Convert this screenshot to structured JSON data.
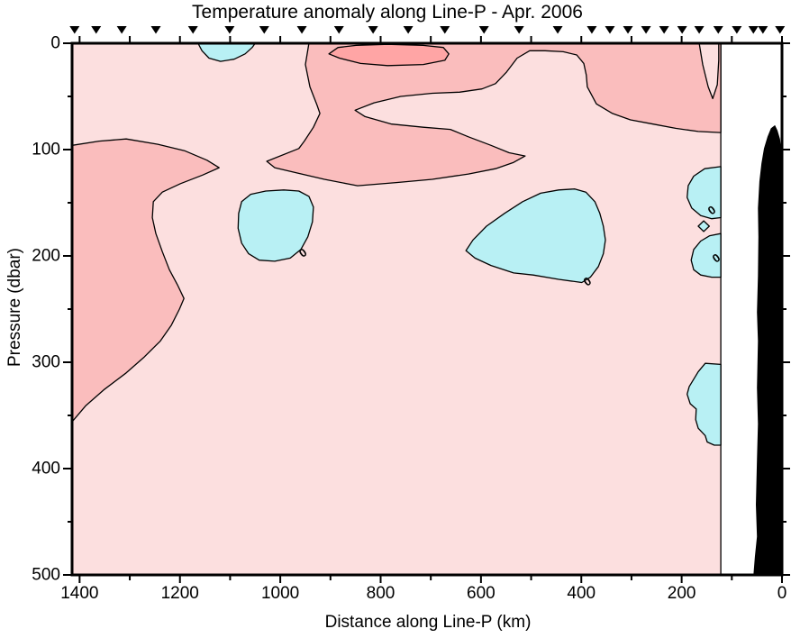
{
  "title": "Temperature anomaly along Line-P - Apr. 2006",
  "axes": {
    "x": {
      "label": "Distance along Line-P (km)",
      "min": 0,
      "max": 1415,
      "reversed": true,
      "major_ticks": [
        1400,
        1200,
        1000,
        800,
        600,
        400,
        200,
        0
      ],
      "minor_ticks": [
        1300,
        1100,
        900,
        700,
        500,
        300,
        100
      ],
      "tick_labels": [
        "1400",
        "1200",
        "1000",
        "800",
        "600",
        "400",
        "200",
        "0"
      ]
    },
    "y": {
      "label": "Pressure (dbar)",
      "min": 0,
      "max": 500,
      "major_ticks": [
        0,
        100,
        200,
        300,
        400,
        500
      ],
      "minor_ticks": [
        50,
        150,
        250,
        350,
        450
      ],
      "tick_labels": [
        "0",
        "100",
        "200",
        "300",
        "400",
        "500"
      ]
    }
  },
  "colors": {
    "light": "#FCDFDF",
    "medium": "#FABDBD",
    "strong": "#FFA5A5",
    "cool": "#B8F0F4",
    "land": "#000000",
    "line": "#000000"
  },
  "chart_data": {
    "type": "filled_contour_section",
    "title": "Temperature anomaly along Line-P - Apr. 2006",
    "xlabel": "Distance along Line-P (km)",
    "ylabel": "Pressure (dbar)",
    "x_unit": "km",
    "y_unit": "dbar",
    "x_range": [
      1415,
      0
    ],
    "y_range": [
      0,
      500
    ],
    "data_extent_km": [
      1415,
      122
    ],
    "contour_levels": [
      0,
      0.5,
      1
    ],
    "station_marker_positions_km": [
      1410,
      1367,
      1316,
      1248,
      1174,
      1101,
      1032,
      957,
      883,
      815,
      745,
      672,
      594,
      524,
      447,
      379,
      343,
      307,
      271,
      235,
      199,
      165,
      127,
      90,
      57,
      38,
      4
    ],
    "regions": [
      {
        "name": "region-left-warm",
        "level": "+0.5 to +1",
        "color_key": "medium",
        "points": [
          [
            1415,
            96
          ],
          [
            1361,
            92
          ],
          [
            1307,
            90
          ],
          [
            1244,
            95
          ],
          [
            1191,
            101
          ],
          [
            1146,
            110
          ],
          [
            1122,
            117
          ],
          [
            1155,
            124
          ],
          [
            1199,
            132
          ],
          [
            1235,
            140
          ],
          [
            1253,
            149
          ],
          [
            1255,
            164
          ],
          [
            1248,
            179
          ],
          [
            1235,
            196
          ],
          [
            1221,
            213
          ],
          [
            1205,
            227
          ],
          [
            1192,
            240
          ],
          [
            1201,
            250
          ],
          [
            1217,
            265
          ],
          [
            1239,
            280
          ],
          [
            1271,
            295
          ],
          [
            1307,
            310
          ],
          [
            1352,
            326
          ],
          [
            1388,
            341
          ],
          [
            1415,
            356
          ]
        ]
      },
      {
        "name": "region-central-warm",
        "level": "+0.5 to +1",
        "color_key": "medium",
        "points": [
          [
            943,
            0
          ],
          [
            950,
            20
          ],
          [
            941,
            41
          ],
          [
            927,
            58
          ],
          [
            921,
            66
          ],
          [
            934,
            79
          ],
          [
            952,
            92
          ],
          [
            963,
            99
          ],
          [
            1027,
            111
          ],
          [
            1011,
            117
          ],
          [
            966,
            122
          ],
          [
            912,
            128
          ],
          [
            846,
            134
          ],
          [
            769,
            131
          ],
          [
            697,
            128
          ],
          [
            625,
            123
          ],
          [
            571,
            118
          ],
          [
            535,
            112
          ],
          [
            512,
            106
          ],
          [
            544,
            103
          ],
          [
            580,
            96
          ],
          [
            625,
            88
          ],
          [
            661,
            81
          ],
          [
            715,
            79
          ],
          [
            778,
            76
          ],
          [
            831,
            69
          ],
          [
            851,
            63
          ],
          [
            813,
            56
          ],
          [
            760,
            50
          ],
          [
            697,
            47
          ],
          [
            643,
            46
          ],
          [
            598,
            43
          ],
          [
            571,
            38
          ],
          [
            549,
            27
          ],
          [
            528,
            14
          ],
          [
            503,
            7
          ],
          [
            472,
            7
          ],
          [
            436,
            8
          ],
          [
            409,
            11
          ],
          [
            395,
            19
          ],
          [
            390,
            30
          ],
          [
            388,
            41
          ],
          [
            370,
            57
          ],
          [
            338,
            66
          ],
          [
            302,
            72
          ],
          [
            257,
            76
          ],
          [
            212,
            80
          ],
          [
            167,
            83
          ],
          [
            122,
            84
          ],
          [
            122,
            0
          ]
        ]
      },
      {
        "name": "region-top-right-notch",
        "level": "0 to +0.5",
        "color_key": "light",
        "points": [
          [
            165,
            0
          ],
          [
            158,
            20
          ],
          [
            147,
            41
          ],
          [
            138,
            52
          ],
          [
            129,
            39
          ],
          [
            126,
            16
          ],
          [
            126,
            0
          ]
        ]
      },
      {
        "name": "region-warm-core",
        "level": "above +1",
        "color_key": "strong",
        "points": [
          [
            903,
            10
          ],
          [
            885,
            4
          ],
          [
            849,
            2
          ],
          [
            786,
            1
          ],
          [
            715,
            2
          ],
          [
            675,
            4
          ],
          [
            664,
            10
          ],
          [
            672,
            16
          ],
          [
            715,
            20
          ],
          [
            786,
            21
          ],
          [
            840,
            19
          ],
          [
            882,
            14
          ]
        ]
      },
      {
        "name": "region-cool-top",
        "level": "below 0",
        "color_key": "cool",
        "points": [
          [
            1164,
            0
          ],
          [
            1156,
            7
          ],
          [
            1142,
            14
          ],
          [
            1119,
            17
          ],
          [
            1092,
            15
          ],
          [
            1070,
            10
          ],
          [
            1056,
            4
          ],
          [
            1050,
            0
          ]
        ]
      },
      {
        "name": "region-cool-west",
        "level": "below 0",
        "color_key": "cool",
        "points": [
          [
            1083,
            160
          ],
          [
            1077,
            149
          ],
          [
            1059,
            142
          ],
          [
            1029,
            139
          ],
          [
            993,
            138
          ],
          [
            963,
            139
          ],
          [
            943,
            144
          ],
          [
            934,
            154
          ],
          [
            936,
            168
          ],
          [
            945,
            182
          ],
          [
            959,
            194
          ],
          [
            980,
            202
          ],
          [
            1011,
            205
          ],
          [
            1042,
            204
          ],
          [
            1063,
            198
          ],
          [
            1077,
            188
          ],
          [
            1084,
            174
          ]
        ]
      },
      {
        "name": "region-cool-central",
        "level": "below 0",
        "color_key": "cool",
        "points": [
          [
            630,
            195
          ],
          [
            616,
            185
          ],
          [
            589,
            172
          ],
          [
            553,
            160
          ],
          [
            517,
            149
          ],
          [
            481,
            141
          ],
          [
            445,
            138
          ],
          [
            413,
            137
          ],
          [
            391,
            140
          ],
          [
            373,
            149
          ],
          [
            363,
            160
          ],
          [
            356,
            172
          ],
          [
            352,
            185
          ],
          [
            356,
            198
          ],
          [
            366,
            210
          ],
          [
            382,
            220
          ],
          [
            399,
            225
          ],
          [
            445,
            222
          ],
          [
            496,
            218
          ],
          [
            535,
            216
          ],
          [
            580,
            209
          ],
          [
            612,
            202
          ]
        ]
      },
      {
        "name": "region-cool-east-upper",
        "level": "below 0",
        "color_key": "cool",
        "points": [
          [
            122,
            116
          ],
          [
            154,
            118
          ],
          [
            176,
            125
          ],
          [
            187,
            134
          ],
          [
            189,
            145
          ],
          [
            180,
            155
          ],
          [
            162,
            162
          ],
          [
            140,
            165
          ],
          [
            122,
            164
          ]
        ]
      },
      {
        "name": "region-cool-east-dot",
        "level": "below 0",
        "color_key": "cool",
        "points": [
          [
            167,
            172
          ],
          [
            156,
            167
          ],
          [
            145,
            172
          ],
          [
            156,
            177
          ]
        ]
      },
      {
        "name": "region-cool-east-lower",
        "level": "below 0",
        "color_key": "cool",
        "points": [
          [
            122,
            179
          ],
          [
            144,
            181
          ],
          [
            162,
            186
          ],
          [
            176,
            194
          ],
          [
            181,
            204
          ],
          [
            176,
            213
          ],
          [
            162,
            218
          ],
          [
            140,
            220
          ],
          [
            122,
            220
          ]
        ]
      },
      {
        "name": "region-cool-east-deep",
        "level": "below 0",
        "color_key": "cool",
        "points": [
          [
            122,
            302
          ],
          [
            153,
            301
          ],
          [
            167,
            309
          ],
          [
            185,
            323
          ],
          [
            189,
            330
          ],
          [
            183,
            339
          ],
          [
            171,
            344
          ],
          [
            172,
            354
          ],
          [
            167,
            362
          ],
          [
            153,
            369
          ],
          [
            149,
            375
          ],
          [
            135,
            378
          ],
          [
            122,
            378
          ]
        ]
      }
    ],
    "zero_contour_labels": [
      {
        "value": "0",
        "km": 955,
        "dbar": 197
      },
      {
        "value": "0",
        "km": 388,
        "dbar": 224
      },
      {
        "value": "0",
        "km": 140,
        "dbar": 157
      },
      {
        "value": "0",
        "km": 131,
        "dbar": 202
      }
    ],
    "bathymetry": {
      "name": "coastal-bathymetry",
      "points": [
        [
          14,
          77
        ],
        [
          9,
          82
        ],
        [
          4,
          90
        ],
        [
          2,
          98
        ],
        [
          0,
          106
        ],
        [
          0,
          500
        ],
        [
          57,
          500
        ],
        [
          54,
          483
        ],
        [
          50,
          464
        ],
        [
          52,
          434
        ],
        [
          50,
          392
        ],
        [
          48,
          358
        ],
        [
          50,
          324
        ],
        [
          48,
          280
        ],
        [
          50,
          253
        ],
        [
          48,
          219
        ],
        [
          47,
          182
        ],
        [
          48,
          155
        ],
        [
          45,
          130
        ],
        [
          41,
          113
        ],
        [
          36,
          99
        ],
        [
          29,
          88
        ],
        [
          22,
          80
        ]
      ]
    }
  }
}
